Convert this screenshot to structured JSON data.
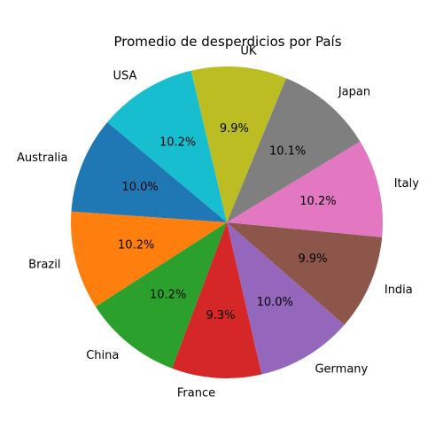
{
  "chart_data": {
    "type": "pie",
    "title": "Promedio de desperdicios por País",
    "categories": [
      "Australia",
      "Brazil",
      "China",
      "France",
      "Germany",
      "India",
      "Italy",
      "Japan",
      "UK",
      "USA"
    ],
    "values": [
      10.0,
      10.2,
      10.2,
      9.3,
      10.0,
      9.9,
      10.2,
      10.1,
      9.9,
      10.2
    ],
    "percent_labels": [
      "10.0%",
      "10.2%",
      "10.2%",
      "9.3%",
      "10.0%",
      "9.9%",
      "10.2%",
      "10.1%",
      "9.9%",
      "10.2%"
    ],
    "colors": [
      "#1f77b4",
      "#ff7f0e",
      "#2ca02c",
      "#d62728",
      "#9467bd",
      "#8c564b",
      "#e377c2",
      "#7f7f7f",
      "#bcbd22",
      "#17becf"
    ],
    "start_angle_deg": 140,
    "direction": "counterclockwise",
    "legend": "none"
  }
}
